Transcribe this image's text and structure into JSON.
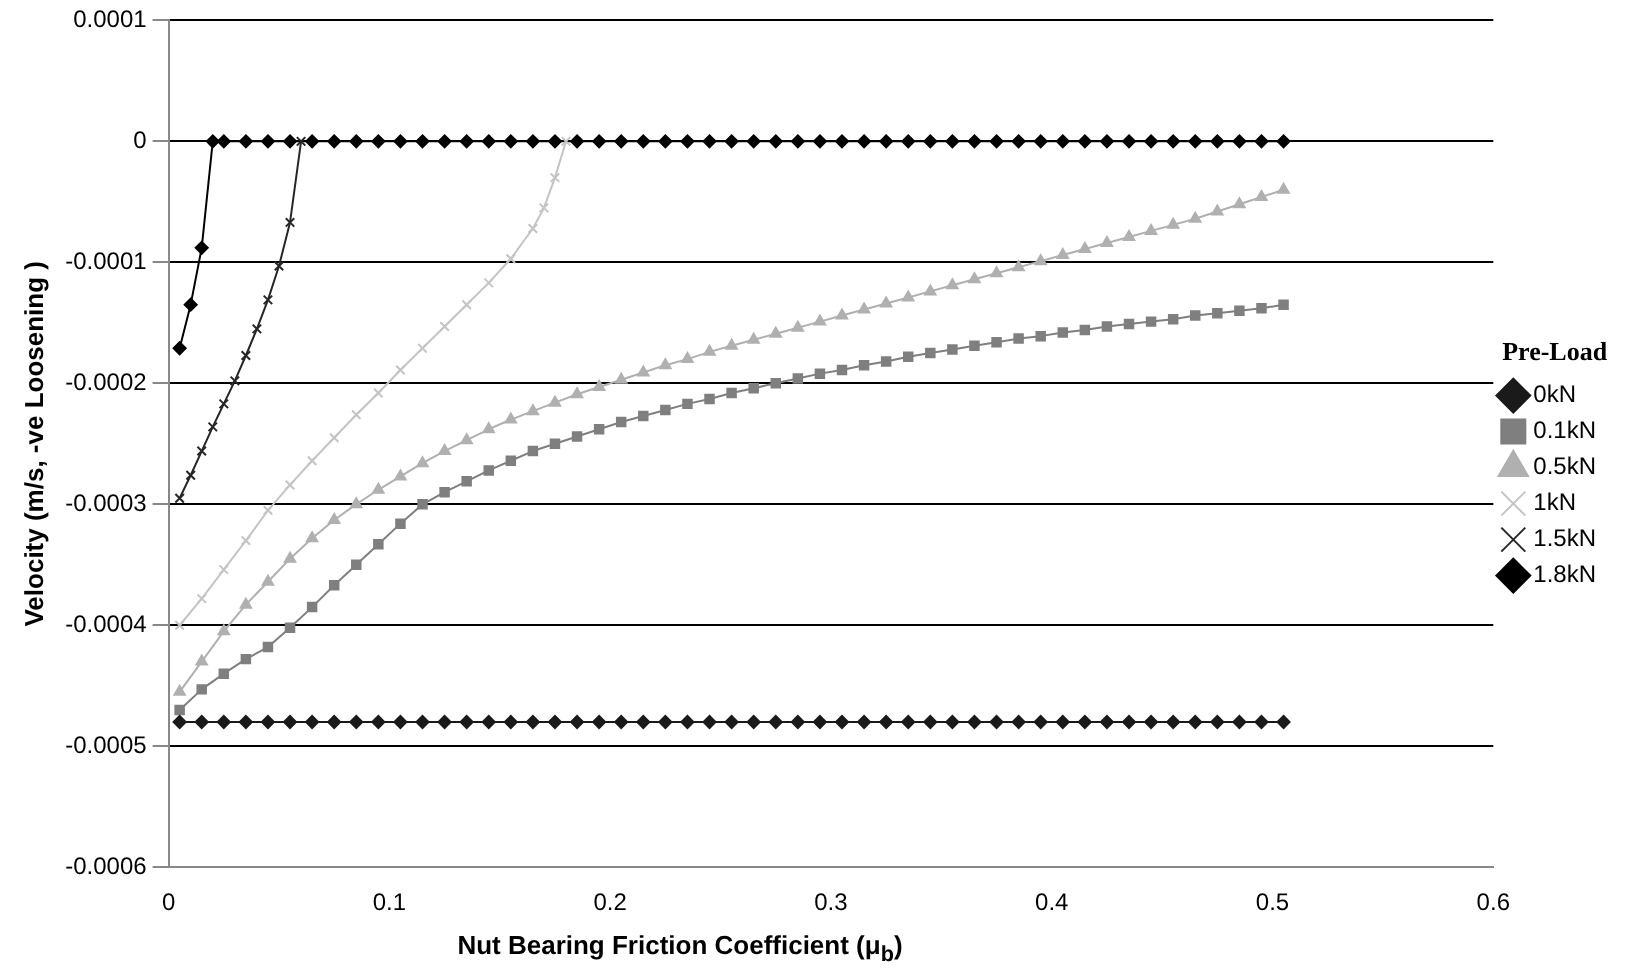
{
  "chart_data": {
    "type": "line",
    "xlabel": "Nut Bearing Friction Coefficient (μ$_{b}$)",
    "ylabel": "Velocity (m/s, -ve Loosening )",
    "legend_title": "Pre-Load",
    "legend": "right",
    "grid": "y",
    "line_style": "solid",
    "xlim": [
      0,
      0.6
    ],
    "xticks": [
      0,
      0.1,
      0.2,
      0.3,
      0.4,
      0.5,
      0.6
    ],
    "ylim": [
      -0.0006,
      0.0001
    ],
    "yticks": [
      -0.0006,
      -0.0005,
      -0.0004,
      -0.0003,
      -0.0002,
      -0.0001,
      0,
      0.0001
    ],
    "x": [
      0.005,
      0.015,
      0.025,
      0.035,
      0.045,
      0.055,
      0.065,
      0.075,
      0.085,
      0.095,
      0.105,
      0.115,
      0.125,
      0.135,
      0.145,
      0.155,
      0.165,
      0.175,
      0.185,
      0.195,
      0.205,
      0.215,
      0.225,
      0.235,
      0.245,
      0.255,
      0.265,
      0.275,
      0.285,
      0.295,
      0.305,
      0.315,
      0.325,
      0.335,
      0.345,
      0.355,
      0.365,
      0.375,
      0.385,
      0.395,
      0.405,
      0.415,
      0.425,
      0.435,
      0.445,
      0.455,
      0.465,
      0.475,
      0.485,
      0.495,
      0.505
    ],
    "series": [
      {
        "name": "0kN",
        "color": "#1a1a1a",
        "marker": "diamond",
        "values": [
          -0.00048,
          -0.00048,
          -0.00048,
          -0.00048,
          -0.00048,
          -0.00048,
          -0.00048,
          -0.00048,
          -0.00048,
          -0.00048,
          -0.00048,
          -0.00048,
          -0.00048,
          -0.00048,
          -0.00048,
          -0.00048,
          -0.00048,
          -0.00048,
          -0.00048,
          -0.00048,
          -0.00048,
          -0.00048,
          -0.00048,
          -0.00048,
          -0.00048,
          -0.00048,
          -0.00048,
          -0.00048,
          -0.00048,
          -0.00048,
          -0.00048,
          -0.00048,
          -0.00048,
          -0.00048,
          -0.00048,
          -0.00048,
          -0.00048,
          -0.00048,
          -0.00048,
          -0.00048,
          -0.00048,
          -0.00048,
          -0.00048,
          -0.00048,
          -0.00048,
          -0.00048,
          -0.00048,
          -0.00048,
          -0.00048,
          -0.00048,
          -0.00048
        ]
      },
      {
        "name": "0.1kN",
        "color": "#7f7f7f",
        "marker": "square",
        "values": [
          -0.00047,
          -0.000453,
          -0.00044,
          -0.000428,
          -0.000418,
          -0.000402,
          -0.000385,
          -0.000367,
          -0.00035,
          -0.000333,
          -0.000316,
          -0.0003,
          -0.00029,
          -0.000281,
          -0.000272,
          -0.000264,
          -0.000256,
          -0.00025,
          -0.000244,
          -0.000238,
          -0.000232,
          -0.000227,
          -0.000222,
          -0.000217,
          -0.000213,
          -0.000208,
          -0.000204,
          -0.0002,
          -0.000196,
          -0.000192,
          -0.000189,
          -0.000185,
          -0.000182,
          -0.000178,
          -0.000175,
          -0.000172,
          -0.000169,
          -0.000166,
          -0.000163,
          -0.000161,
          -0.000158,
          -0.000156,
          -0.000153,
          -0.000151,
          -0.000149,
          -0.000147,
          -0.000144,
          -0.000142,
          -0.00014,
          -0.000138,
          -0.000135
        ]
      },
      {
        "name": "0.5kN",
        "color": "#b0b0b0",
        "marker": "triangle",
        "values": [
          -0.000455,
          -0.00043,
          -0.000405,
          -0.000383,
          -0.000364,
          -0.000345,
          -0.000328,
          -0.000313,
          -0.0003,
          -0.000288,
          -0.000277,
          -0.000266,
          -0.000256,
          -0.000247,
          -0.000238,
          -0.00023,
          -0.000223,
          -0.000216,
          -0.000209,
          -0.000203,
          -0.000197,
          -0.000191,
          -0.000185,
          -0.00018,
          -0.000174,
          -0.000169,
          -0.000164,
          -0.000159,
          -0.000154,
          -0.000149,
          -0.000144,
          -0.000139,
          -0.000134,
          -0.000129,
          -0.000124,
          -0.000119,
          -0.000114,
          -0.000109,
          -0.000104,
          -9.9e-05,
          -9.4e-05,
          -8.9e-05,
          -8.4e-05,
          -7.9e-05,
          -7.4e-05,
          -6.9e-05,
          -6.4e-05,
          -5.8e-05,
          -5.2e-05,
          -4.6e-05,
          -4e-05
        ]
      },
      {
        "name": "1kN",
        "color": "#c4c4c4",
        "marker": "cross",
        "x": [
          0.005,
          0.015,
          0.025,
          0.035,
          0.045,
          0.055,
          0.065,
          0.075,
          0.085,
          0.095,
          0.105,
          0.115,
          0.125,
          0.135,
          0.145,
          0.155,
          0.165,
          0.17,
          0.175,
          0.18
        ],
        "values": [
          -0.0004,
          -0.000378,
          -0.000354,
          -0.00033,
          -0.000305,
          -0.000284,
          -0.000264,
          -0.000245,
          -0.000226,
          -0.000208,
          -0.000189,
          -0.000171,
          -0.000153,
          -0.000135,
          -0.000117,
          -9.7e-05,
          -7.2e-05,
          -5.5e-05,
          -3e-05,
          0
        ]
      },
      {
        "name": "1.5kN",
        "color": "#262626",
        "marker": "cross",
        "x": [
          0.005,
          0.01,
          0.015,
          0.02,
          0.025,
          0.03,
          0.035,
          0.04,
          0.045,
          0.05,
          0.055,
          0.06
        ],
        "values": [
          -0.000295,
          -0.000276,
          -0.000256,
          -0.000236,
          -0.000217,
          -0.000198,
          -0.000177,
          -0.000155,
          -0.000131,
          -0.000103,
          -6.7e-05,
          0
        ]
      },
      {
        "name": "1.8kN",
        "color": "#000000",
        "marker": "diamond",
        "x": [
          0.005,
          0.01,
          0.015,
          0.02,
          0.025,
          0.035,
          0.045,
          0.055,
          0.065,
          0.075,
          0.085,
          0.095,
          0.105,
          0.115,
          0.125,
          0.135,
          0.145,
          0.155,
          0.165,
          0.175,
          0.185,
          0.195,
          0.205,
          0.215,
          0.225,
          0.235,
          0.245,
          0.255,
          0.265,
          0.275,
          0.285,
          0.295,
          0.305,
          0.315,
          0.325,
          0.335,
          0.345,
          0.355,
          0.365,
          0.375,
          0.385,
          0.395,
          0.405,
          0.415,
          0.425,
          0.435,
          0.445,
          0.455,
          0.465,
          0.475,
          0.485,
          0.495,
          0.505
        ],
        "values": [
          -0.000171,
          -0.000135,
          -8.8e-05,
          0,
          0,
          0,
          0,
          0,
          0,
          0,
          0,
          0,
          0,
          0,
          0,
          0,
          0,
          0,
          0,
          0,
          0,
          0,
          0,
          0,
          0,
          0,
          0,
          0,
          0,
          0,
          0,
          0,
          0,
          0,
          0,
          0,
          0,
          0,
          0,
          0,
          0,
          0,
          0,
          0,
          0,
          0,
          0,
          0,
          0,
          0,
          0,
          0,
          0
        ]
      }
    ]
  }
}
